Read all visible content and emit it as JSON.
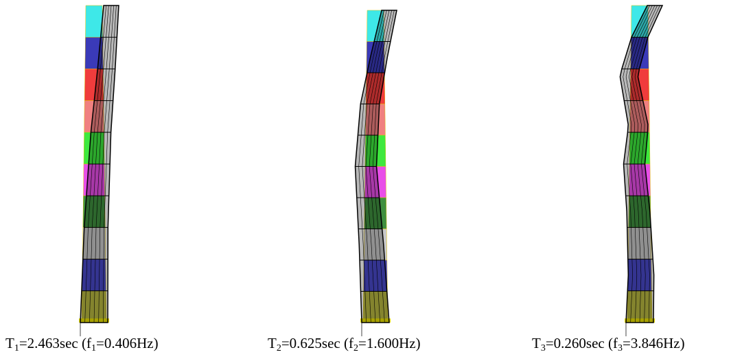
{
  "modes": [
    {
      "period_symbol": "T",
      "period_index": "1",
      "period": "=2.463sec",
      "freq_symbol": "(f",
      "freq_index": "1",
      "freq": "=0.406Hz)"
    },
    {
      "period_symbol": "T",
      "period_index": "2",
      "period": "=0.625sec",
      "freq_symbol": "(f",
      "freq_index": "2",
      "freq": "=1.600Hz)"
    },
    {
      "period_symbol": "T",
      "period_index": "3",
      "period": "=0.260sec",
      "freq_symbol": "(f",
      "freq_index": "3",
      "freq": "=3.846Hz)"
    }
  ]
}
